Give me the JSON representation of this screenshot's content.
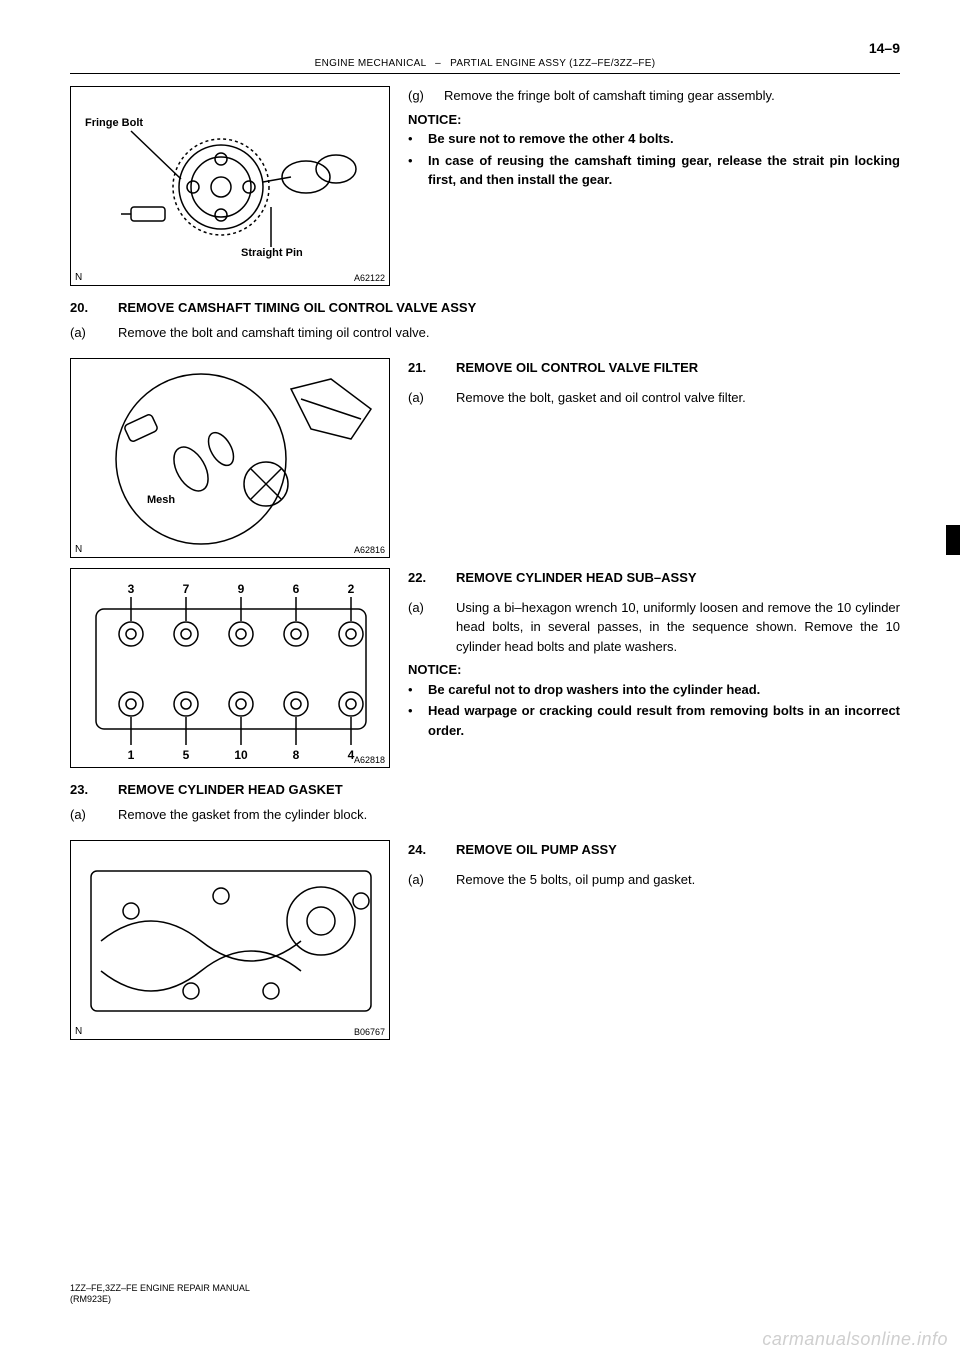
{
  "page_number": "14–9",
  "header": {
    "left": "ENGINE MECHANICAL",
    "right": "PARTIAL ENGINE ASSY (1ZZ–FE/3ZZ–FE)"
  },
  "fig1": {
    "label_fringe": "Fringe Bolt",
    "label_pin": "Straight Pin",
    "corner": "N",
    "code": "A62122",
    "text": {
      "g_tag": "(g)",
      "g_body": "Remove the fringe bolt of camshaft timing gear assembly.",
      "notice": "NOTICE:",
      "b1": "Be sure not to remove the other 4 bolts.",
      "b2": "In case of reusing the camshaft timing gear, release the strait pin locking first, and then install the gear."
    }
  },
  "sec20": {
    "num": "20.",
    "title": "REMOVE CAMSHAFT TIMING OIL CONTROL VALVE ASSY",
    "a_tag": "(a)",
    "a_body": "Remove the bolt and camshaft timing oil control valve."
  },
  "fig2": {
    "label_mesh": "Mesh",
    "corner": "N",
    "code": "A62816",
    "sec": {
      "num": "21.",
      "title": "REMOVE OIL CONTROL VALVE FILTER",
      "a_tag": "(a)",
      "a_body": "Remove the bolt, gasket and oil control valve filter."
    }
  },
  "fig3": {
    "numbers_top": [
      "3",
      "7",
      "9",
      "6",
      "2"
    ],
    "numbers_bottom": [
      "1",
      "5",
      "10",
      "8",
      "4"
    ],
    "code": "A62818",
    "sec": {
      "num": "22.",
      "title": "REMOVE CYLINDER HEAD SUB–ASSY",
      "a_tag": "(a)",
      "a_body": "Using a bi–hexagon wrench 10, uniformly loosen and remove the 10 cylinder head bolts, in several passes, in the sequence shown. Remove the 10 cylinder head bolts and plate washers.",
      "notice": "NOTICE:",
      "b1": "Be careful not to drop washers into the cylinder head.",
      "b2": "Head warpage or cracking could result from removing bolts in an incorrect order."
    }
  },
  "sec23": {
    "num": "23.",
    "title": "REMOVE CYLINDER HEAD GASKET",
    "a_tag": "(a)",
    "a_body": "Remove the gasket from the cylinder block."
  },
  "fig4": {
    "corner": "N",
    "code": "B06767",
    "sec": {
      "num": "24.",
      "title": "REMOVE OIL PUMP ASSY",
      "a_tag": "(a)",
      "a_body": "Remove the 5 bolts, oil pump and gasket."
    }
  },
  "footer": {
    "l1": "1ZZ–FE,3ZZ–FE ENGINE REPAIR MANUAL",
    "l2": "(RM923E)"
  },
  "watermark": "carmanualsonline.info"
}
